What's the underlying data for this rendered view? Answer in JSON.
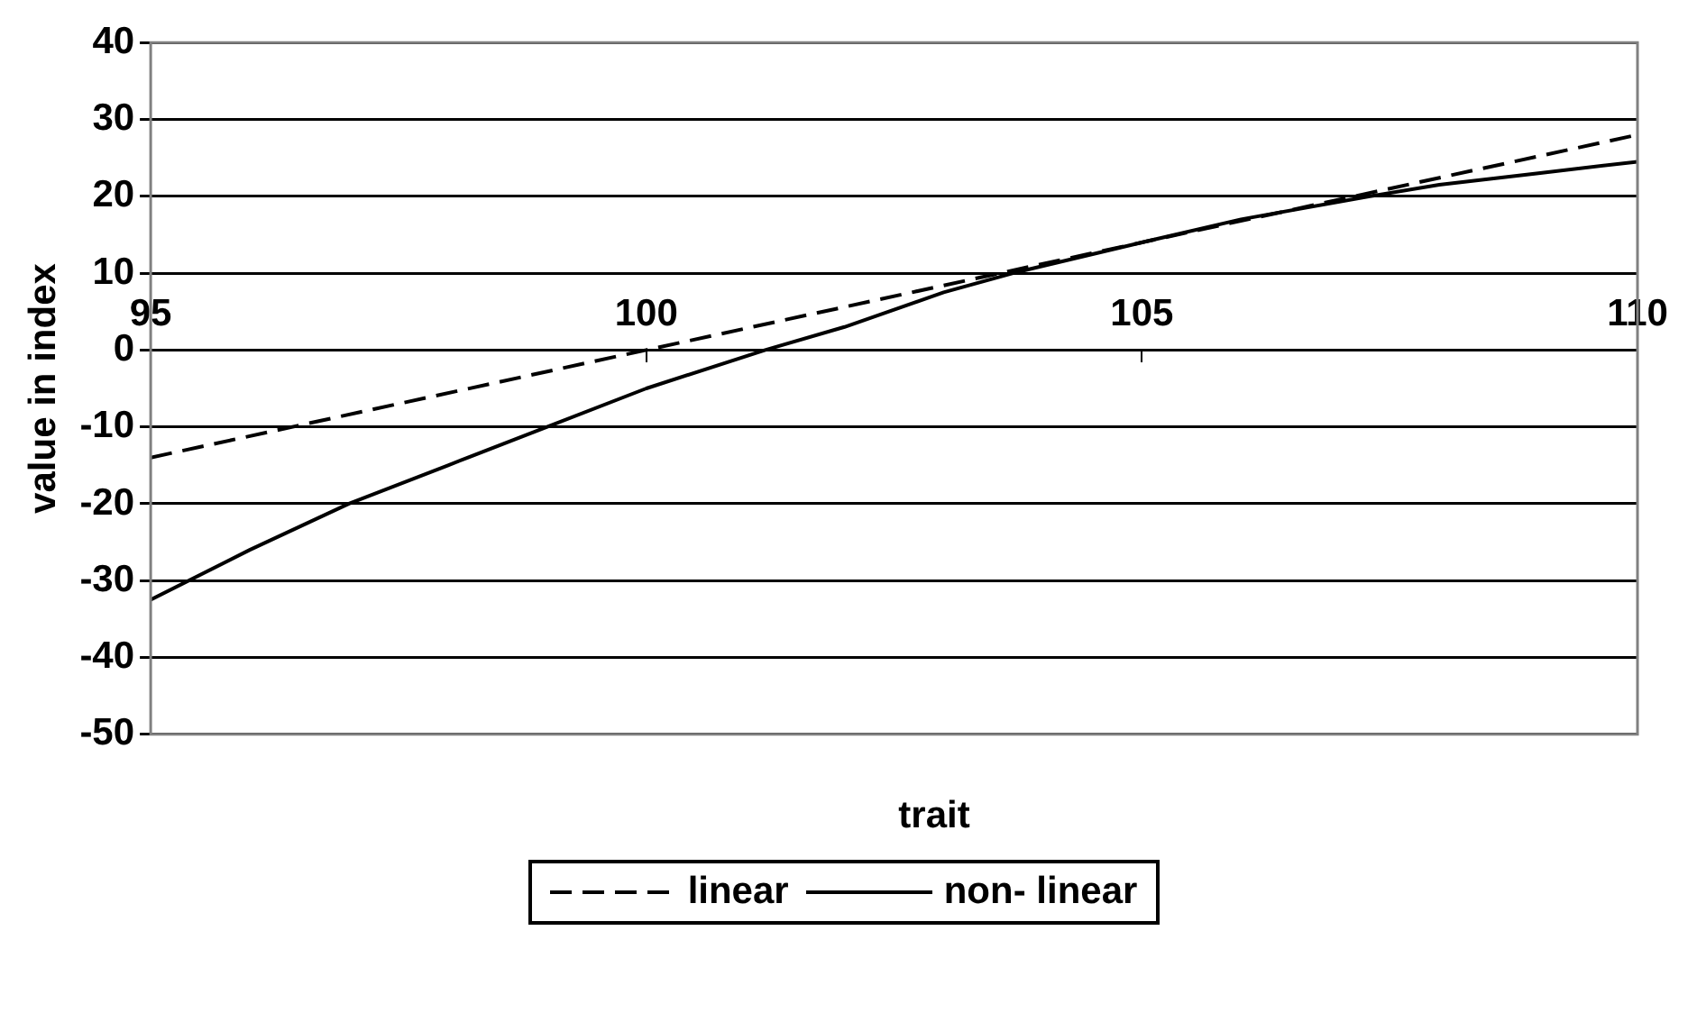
{
  "chart_data": {
    "type": "line",
    "xlabel": "trait",
    "ylabel": "value in index",
    "xlim": [
      95,
      110
    ],
    "xticks": [
      95,
      100,
      105,
      110
    ],
    "ylim": [
      -50,
      40
    ],
    "yticks": [
      -50,
      -40,
      -30,
      -20,
      -10,
      0,
      10,
      20,
      30,
      40
    ],
    "grid": "y",
    "legend": "bottom",
    "marker": "none",
    "series": [
      {
        "name": "linear",
        "color": "#000000",
        "line_style": "dashed",
        "x": [
          95,
          100,
          105,
          110
        ],
        "values": [
          -14,
          0,
          14,
          28
        ]
      },
      {
        "name": "non- linear",
        "color": "#000000",
        "line_style": "solid",
        "x": [
          95,
          96,
          97,
          98,
          99,
          100,
          101.2,
          102,
          103,
          103.7,
          105,
          106,
          107.3,
          108,
          109,
          110
        ],
        "values": [
          -32.5,
          -26,
          -20,
          -15,
          -10,
          -5,
          0,
          3,
          7.5,
          10,
          14,
          17,
          20,
          21.5,
          23,
          24.5
        ]
      }
    ]
  }
}
